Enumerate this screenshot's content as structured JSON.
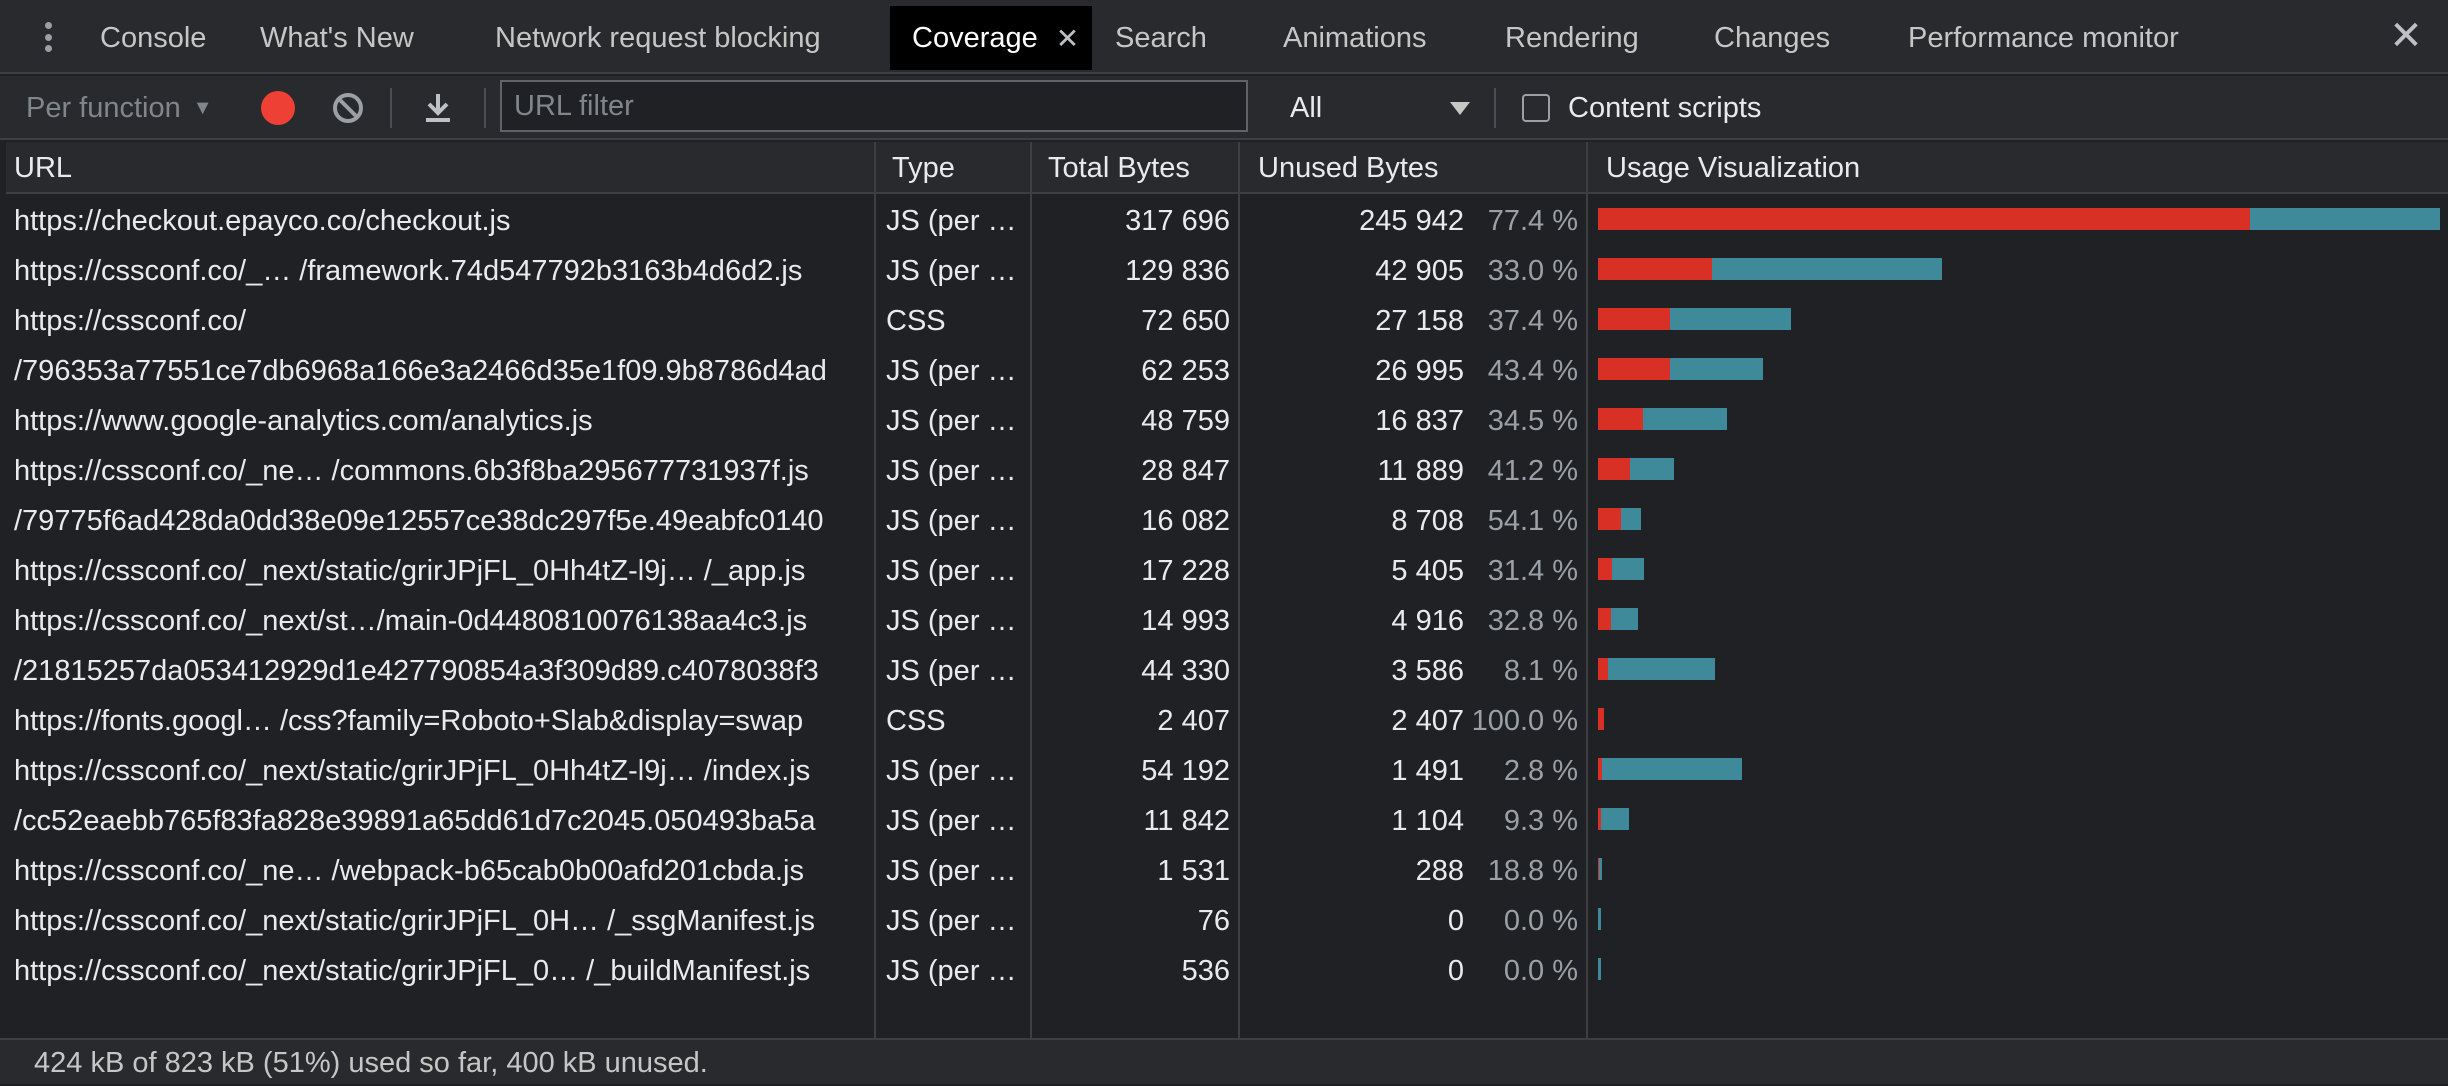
{
  "tabs": [
    {
      "label": "Console",
      "active": false
    },
    {
      "label": "What's New",
      "active": false
    },
    {
      "label": "Network request blocking",
      "active": false
    },
    {
      "label": "Coverage",
      "active": true
    },
    {
      "label": "Search",
      "active": false
    },
    {
      "label": "Animations",
      "active": false
    },
    {
      "label": "Rendering",
      "active": false
    },
    {
      "label": "Changes",
      "active": false
    },
    {
      "label": "Performance monitor",
      "active": false
    }
  ],
  "toolbar": {
    "mode_label": "Per function",
    "url_filter_placeholder": "URL filter",
    "url_filter_value": "",
    "type_selected": "All",
    "content_scripts_label": "Content scripts",
    "content_scripts_checked": false
  },
  "table": {
    "columns": [
      "URL",
      "Type",
      "Total Bytes",
      "Unused Bytes",
      "Usage Visualization"
    ],
    "rows": [
      {
        "url": "https://checkout.epayco.co/checkout.js",
        "type": "JS (per …",
        "total": "317 696",
        "unused": "245 942",
        "pct": "77.4 %",
        "total_n": 317696,
        "unused_n": 245942
      },
      {
        "url": "https://cssconf.co/_…  /framework.74d547792b3163b4d6d2.js",
        "type": "JS (per …",
        "total": "129 836",
        "unused": "42 905",
        "pct": "33.0 %",
        "total_n": 129836,
        "unused_n": 42905
      },
      {
        "url": "https://cssconf.co/",
        "type": "CSS",
        "total": "72 650",
        "unused": "27 158",
        "pct": "37.4 %",
        "total_n": 72650,
        "unused_n": 27158
      },
      {
        "url": "/796353a77551ce7db6968a166e3a2466d35e1f09.9b8786d4ad",
        "type": "JS (per …",
        "total": "62 253",
        "unused": "26 995",
        "pct": "43.4 %",
        "total_n": 62253,
        "unused_n": 26995
      },
      {
        "url": "https://www.google-analytics.com/analytics.js",
        "type": "JS (per …",
        "total": "48 759",
        "unused": "16 837",
        "pct": "34.5 %",
        "total_n": 48759,
        "unused_n": 16837
      },
      {
        "url": "https://cssconf.co/_ne… /commons.6b3f8ba295677731937f.js",
        "type": "JS (per …",
        "total": "28 847",
        "unused": "11 889",
        "pct": "41.2 %",
        "total_n": 28847,
        "unused_n": 11889
      },
      {
        "url": "/79775f6ad428da0dd38e09e12557ce38dc297f5e.49eabfc0140",
        "type": "JS (per …",
        "total": "16 082",
        "unused": "8 708",
        "pct": "54.1 %",
        "total_n": 16082,
        "unused_n": 8708
      },
      {
        "url": "https://cssconf.co/_next/static/grirJPjFL_0Hh4tZ-l9j… /_app.js",
        "type": "JS (per …",
        "total": "17 228",
        "unused": "5 405",
        "pct": "31.4 %",
        "total_n": 17228,
        "unused_n": 5405
      },
      {
        "url": "https://cssconf.co/_next/st…/main-0d4480810076138aa4c3.js",
        "type": "JS (per …",
        "total": "14 993",
        "unused": "4 916",
        "pct": "32.8 %",
        "total_n": 14993,
        "unused_n": 4916
      },
      {
        "url": "/21815257da053412929d1e427790854a3f309d89.c4078038f3",
        "type": "JS (per …",
        "total": "44 330",
        "unused": "3 586",
        "pct": "8.1 %",
        "total_n": 44330,
        "unused_n": 3586
      },
      {
        "url": "https://fonts.googl…  /css?family=Roboto+Slab&display=swap",
        "type": "CSS",
        "total": "2 407",
        "unused": "2 407",
        "pct": "100.0 %",
        "total_n": 2407,
        "unused_n": 2407
      },
      {
        "url": "https://cssconf.co/_next/static/grirJPjFL_0Hh4tZ-l9j… /index.js",
        "type": "JS (per …",
        "total": "54 192",
        "unused": "1 491",
        "pct": "2.8 %",
        "total_n": 54192,
        "unused_n": 1491
      },
      {
        "url": "/cc52eaebb765f83fa828e39891a65dd61d7c2045.050493ba5a",
        "type": "JS (per …",
        "total": "11 842",
        "unused": "1 104",
        "pct": "9.3 %",
        "total_n": 11842,
        "unused_n": 1104
      },
      {
        "url": "https://cssconf.co/_ne… /webpack-b65cab0b00afd201cbda.js",
        "type": "JS (per …",
        "total": "1 531",
        "unused": "288",
        "pct": "18.8 %",
        "total_n": 1531,
        "unused_n": 288
      },
      {
        "url": "https://cssconf.co/_next/static/grirJPjFL_0H… /_ssgManifest.js",
        "type": "JS (per …",
        "total": "76",
        "unused": "0",
        "pct": "0.0 %",
        "total_n": 76,
        "unused_n": 0
      },
      {
        "url": "https://cssconf.co/_next/static/grirJPjFL_0… /_buildManifest.js",
        "type": "JS (per …",
        "total": "536",
        "unused": "0",
        "pct": "0.0 %",
        "total_n": 536,
        "unused_n": 0
      }
    ]
  },
  "status_text": "424 kB of 823 kB (51%) used so far, 400 kB unused.",
  "colors": {
    "unused_bar": "#d93025",
    "used_bar": "#3e8a9b",
    "record": "#ee4035"
  },
  "icons": {
    "menu": "more-vertical-icon",
    "record": "record-icon",
    "clear": "clear-icon",
    "download": "download-icon",
    "close_tab": "close-icon",
    "close_panel": "close-icon"
  }
}
